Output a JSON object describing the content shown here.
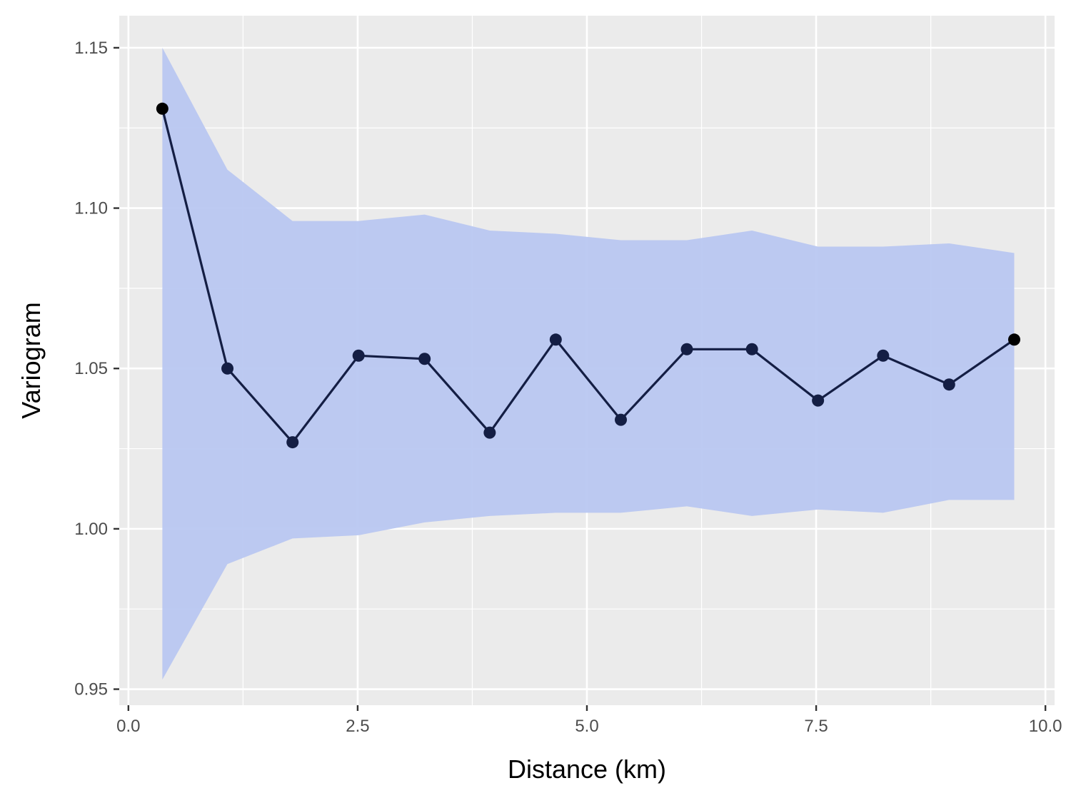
{
  "chart_data": {
    "type": "line",
    "title": "",
    "xlabel": "Distance (km)",
    "ylabel": "Variogram",
    "xlim": [
      -0.1,
      10.1
    ],
    "ylim": [
      0.945,
      1.16
    ],
    "x_ticks": [
      0.0,
      2.5,
      5.0,
      7.5,
      10.0
    ],
    "x_tick_labels": [
      "0.0",
      "2.5",
      "5.0",
      "7.5",
      "10.0"
    ],
    "y_ticks": [
      0.95,
      1.0,
      1.05,
      1.1,
      1.15
    ],
    "y_tick_labels": [
      "0.95",
      "1.00",
      "1.05",
      "1.10",
      "1.15"
    ],
    "grid": true,
    "series": [
      {
        "x": [
          0.37,
          1.08,
          1.79,
          2.51,
          3.23,
          3.94,
          4.66,
          5.37,
          6.09,
          6.8,
          7.52,
          8.23,
          8.95,
          9.66
        ],
        "y": [
          1.131,
          1.05,
          1.027,
          1.054,
          1.053,
          1.03,
          1.059,
          1.034,
          1.056,
          1.056,
          1.04,
          1.054,
          1.045,
          1.059
        ],
        "lower": [
          0.953,
          0.989,
          0.997,
          0.998,
          1.002,
          1.004,
          1.005,
          1.005,
          1.007,
          1.004,
          1.006,
          1.005,
          1.009,
          1.009
        ],
        "upper": [
          1.15,
          1.112,
          1.096,
          1.096,
          1.098,
          1.093,
          1.092,
          1.09,
          1.09,
          1.093,
          1.088,
          1.088,
          1.089,
          1.086
        ]
      }
    ],
    "colors": {
      "panel": "#ebebeb",
      "grid": "#ffffff",
      "ribbon": "#b9c7f1",
      "line": "#141e44",
      "point": "#141e44",
      "endpoint": "#000000",
      "tick": "#333333"
    }
  }
}
